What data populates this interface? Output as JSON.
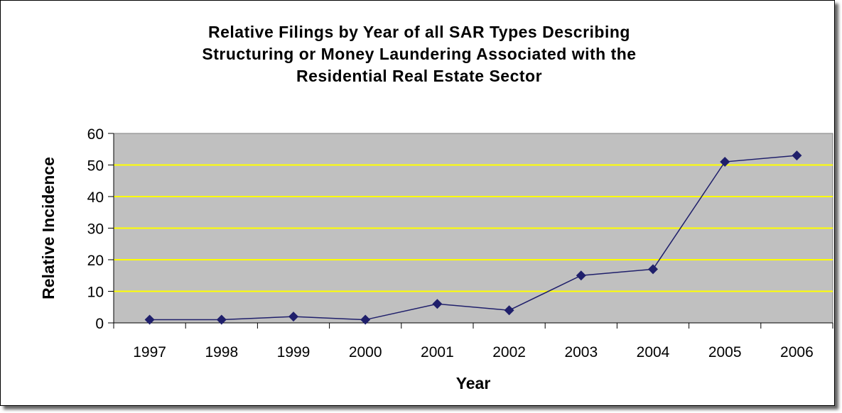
{
  "chart_data": {
    "type": "line",
    "title_lines": [
      "Relative Filings by Year of all SAR Types Describing",
      "Structuring or Money Laundering Associated with the",
      "Residential Real Estate Sector"
    ],
    "xlabel": "Year",
    "ylabel": "Relative Incidence",
    "categories": [
      "1997",
      "1998",
      "1999",
      "2000",
      "2001",
      "2002",
      "2003",
      "2004",
      "2005",
      "2006"
    ],
    "series": [
      {
        "values": [
          1,
          1,
          2,
          1,
          6,
          4,
          15,
          17,
          51,
          53
        ]
      }
    ],
    "ylim": [
      0,
      60
    ],
    "yticks": [
      "0",
      "10",
      "20",
      "30",
      "40",
      "50",
      "60"
    ],
    "grid": true,
    "legend": "none",
    "colors": {
      "plot_background": "#c0c0c0",
      "gridline": "#ffff00",
      "series_line": "#1f1f6b",
      "marker": "#1f1f6b"
    }
  }
}
